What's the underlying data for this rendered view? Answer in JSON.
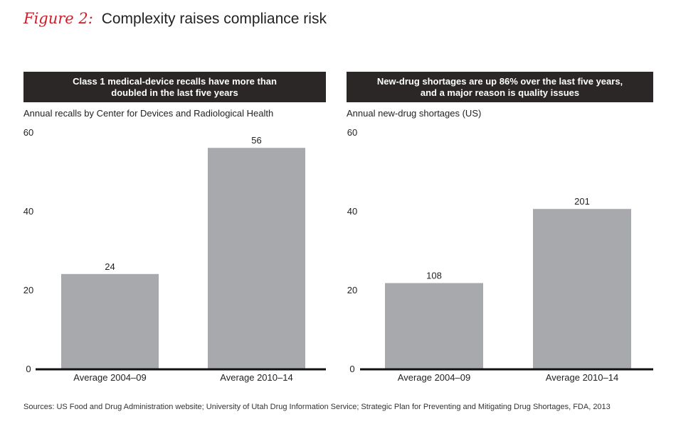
{
  "figure": {
    "label": "Figure 2:",
    "title": "Complexity raises compliance risk"
  },
  "panels": [
    {
      "banner_line1": "Class 1 medical-device recalls have more than",
      "banner_line2": "doubled in the last five years",
      "subtitle": "Annual recalls by Center for Devices and Radiological Health"
    },
    {
      "banner_line1": "New-drug shortages are up 86% over the last five years,",
      "banner_line2": "and a major reason is quality issues",
      "subtitle": "Annual new-drug shortages (US)"
    }
  ],
  "chart_data": [
    {
      "type": "bar",
      "title": "Class 1 medical-device recalls have more than doubled in the last five years",
      "ylabel": "Annual recalls by Center for Devices and Radiological Health",
      "categories": [
        "Average 2004–09",
        "Average 2010–14"
      ],
      "values": [
        24,
        56
      ],
      "data_labels": [
        "24",
        "56"
      ],
      "ylim": [
        0,
        60
      ],
      "yticks": [
        0,
        20,
        40,
        60
      ],
      "bar_color": "#a7a9ac",
      "grid": false
    },
    {
      "type": "bar",
      "title": "New-drug shortages are up 86% over the last five years, and a major reason is quality issues",
      "ylabel": "Annual new-drug shortages (US)",
      "categories": [
        "Average 2004–09",
        "Average 2010–14"
      ],
      "values": [
        21.7,
        40.5
      ],
      "data_labels": [
        "108",
        "201"
      ],
      "ylim": [
        0,
        60
      ],
      "yticks": [
        0,
        20,
        40,
        60
      ],
      "bar_color": "#a7a9ac",
      "grid": false
    }
  ],
  "sources": "Sources: US Food and Drug Administration website; University of Utah Drug Information Service; Strategic Plan for Preventing and Mitigating Drug Shortages, FDA, 2013",
  "colors": {
    "accent": "#cc1e2a",
    "banner": "#2a2726",
    "bar": "#a7a9ac",
    "axis": "#111111"
  }
}
